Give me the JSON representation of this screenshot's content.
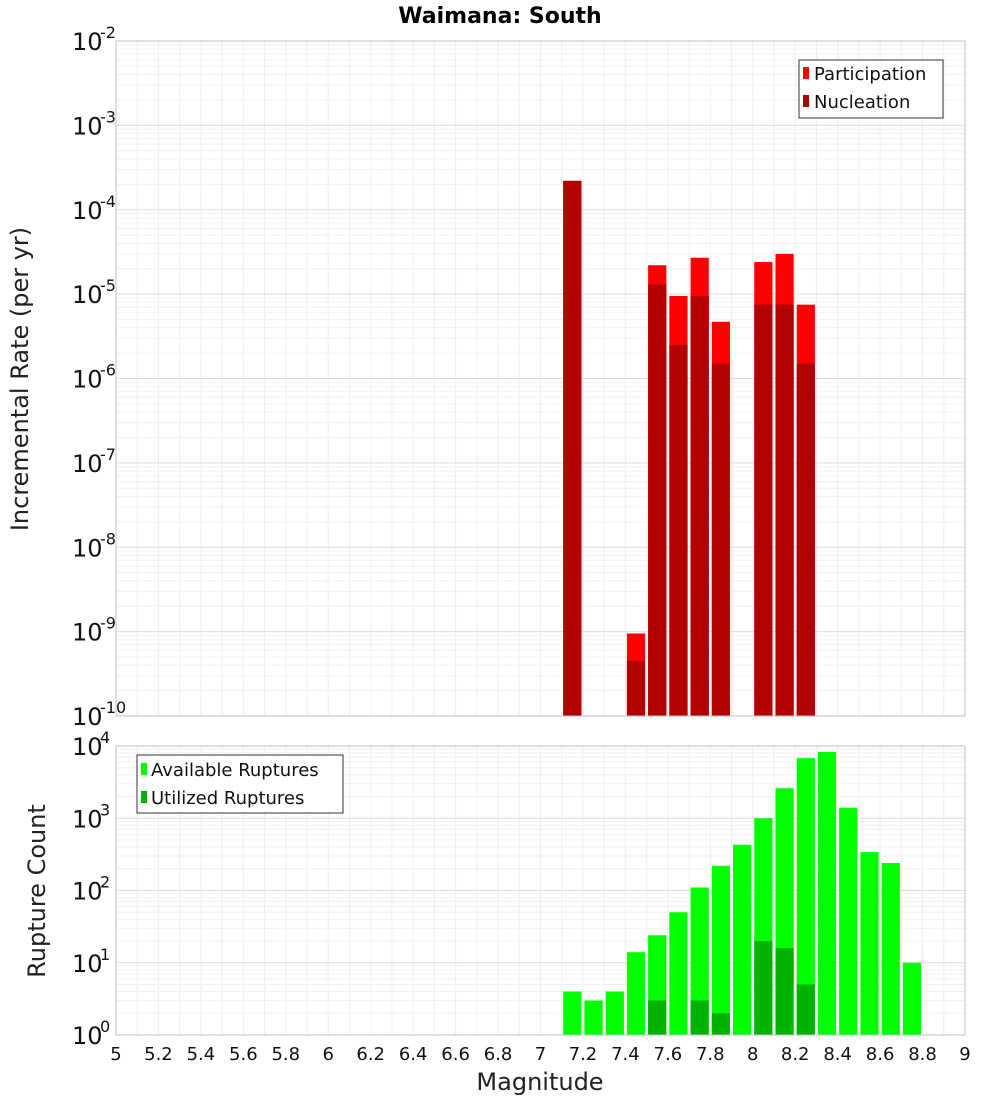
{
  "chart_data": {
    "title": "Waimana: South",
    "xlabel": "Magnitude",
    "xlim": [
      5,
      9
    ],
    "x_ticks": [
      "5",
      "5.2",
      "5.4",
      "5.6",
      "5.8",
      "6",
      "6.2",
      "6.4",
      "6.6",
      "6.8",
      "7",
      "7.2",
      "7.4",
      "7.6",
      "7.8",
      "8",
      "8.2",
      "8.4",
      "8.6",
      "8.8",
      "9"
    ],
    "bin_width": 0.1,
    "panels": [
      {
        "type": "bar",
        "ylabel": "Incremental Rate (per yr)",
        "yscale": "log",
        "ylim_exponents": [
          -10,
          -2
        ],
        "y_tick_exponents": [
          "-10",
          "-9",
          "-8",
          "-7",
          "-6",
          "-5",
          "-4",
          "-3",
          "-2"
        ],
        "legend_position": "top-right",
        "series": [
          {
            "name": "Participation",
            "color": "#ff0000",
            "x": [
              7.15,
              7.45,
              7.55,
              7.65,
              7.75,
              7.85,
              8.05,
              8.15,
              8.25
            ],
            "values": [
              0.00022,
              9.5e-10,
              2.2e-05,
              9.5e-06,
              2.7e-05,
              4.7e-06,
              2.4e-05,
              3e-05,
              7.5e-06
            ]
          },
          {
            "name": "Nucleation",
            "color": "#b30000",
            "x": [
              7.15,
              7.45,
              7.55,
              7.65,
              7.75,
              7.85,
              8.05,
              8.15,
              8.25
            ],
            "values": [
              0.00022,
              4.5e-10,
              1.3e-05,
              2.5e-06,
              9.5e-06,
              1.5e-06,
              7.5e-06,
              7.5e-06,
              1.5e-06
            ]
          }
        ]
      },
      {
        "type": "bar",
        "ylabel": "Rupture Count",
        "yscale": "log",
        "ylim_exponents": [
          0,
          4
        ],
        "y_tick_exponents": [
          "0",
          "1",
          "2",
          "3",
          "4"
        ],
        "legend_position": "top-left",
        "series": [
          {
            "name": "Available Ruptures",
            "color": "#00ff00",
            "x": [
              7.15,
              7.25,
              7.35,
              7.45,
              7.55,
              7.65,
              7.75,
              7.85,
              7.95,
              8.05,
              8.15,
              8.25,
              8.35,
              8.45,
              8.55,
              8.65,
              8.75
            ],
            "values": [
              4,
              3,
              4,
              14,
              24,
              50,
              110,
              220,
              430,
              1000,
              2600,
              6800,
              8300,
              1400,
              340,
              240,
              10
            ]
          },
          {
            "name": "Utilized Ruptures",
            "color": "#00b300",
            "x": [
              7.15,
              7.45,
              7.55,
              7.65,
              7.75,
              7.85,
              8.05,
              8.15,
              8.25
            ],
            "values": [
              1,
              1,
              3,
              1,
              3,
              2,
              20,
              16,
              5
            ]
          }
        ]
      }
    ]
  }
}
